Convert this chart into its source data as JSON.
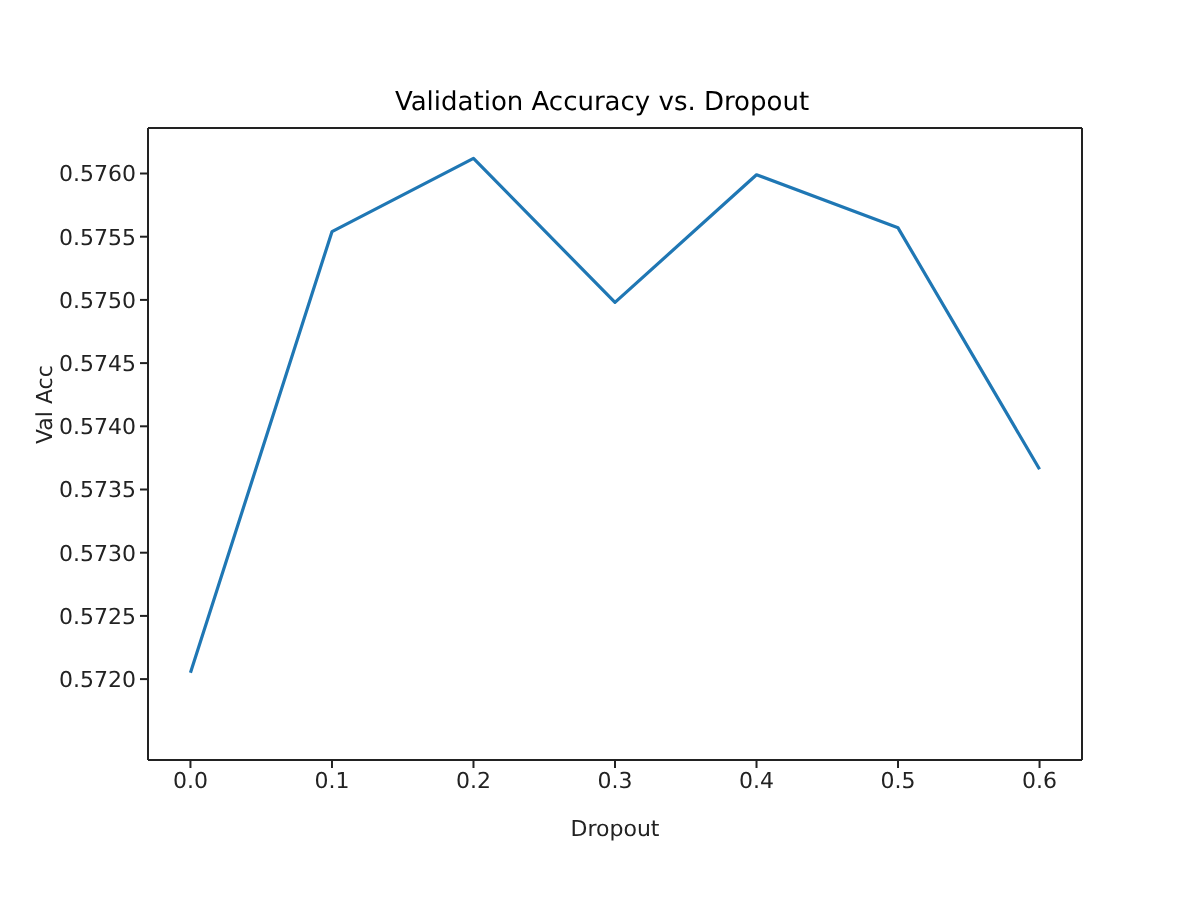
{
  "chart_data": {
    "type": "line",
    "title": "Validation Accuracy vs. Dropout",
    "xlabel": "Dropout",
    "ylabel": "Val Acc",
    "x": [
      0.0,
      0.1,
      0.2,
      0.3,
      0.4,
      0.5,
      0.6
    ],
    "series": [
      {
        "color": "#1f77b4",
        "values": [
          0.57205,
          0.57554,
          0.57612,
          0.57498,
          0.57599,
          0.57557,
          0.57366
        ]
      }
    ],
    "xlim": [
      -0.03,
      0.63
    ],
    "xticks": [
      {
        "value": 0,
        "label": "0.0"
      },
      {
        "value": 0.1,
        "label": "0.1"
      },
      {
        "value": 0.2,
        "label": "0.2"
      },
      {
        "value": 0.3,
        "label": "0.3"
      },
      {
        "value": 0.4,
        "label": "0.4"
      },
      {
        "value": 0.5,
        "label": "0.5"
      },
      {
        "value": 0.6,
        "label": "0.6"
      }
    ],
    "ylim": [
      0.57136,
      0.57636
    ],
    "yticks": [
      {
        "value": 0.572,
        "label": "0.5720"
      },
      {
        "value": 0.5725,
        "label": "0.5725"
      },
      {
        "value": 0.573,
        "label": "0.5730"
      },
      {
        "value": 0.5735,
        "label": "0.5735"
      },
      {
        "value": 0.574,
        "label": "0.5740"
      },
      {
        "value": 0.5745,
        "label": "0.5745"
      },
      {
        "value": 0.575,
        "label": "0.5750"
      },
      {
        "value": 0.5755,
        "label": "0.5755"
      },
      {
        "value": 0.576,
        "label": "0.5760"
      }
    ],
    "marker": "none",
    "line_style": "solid"
  }
}
